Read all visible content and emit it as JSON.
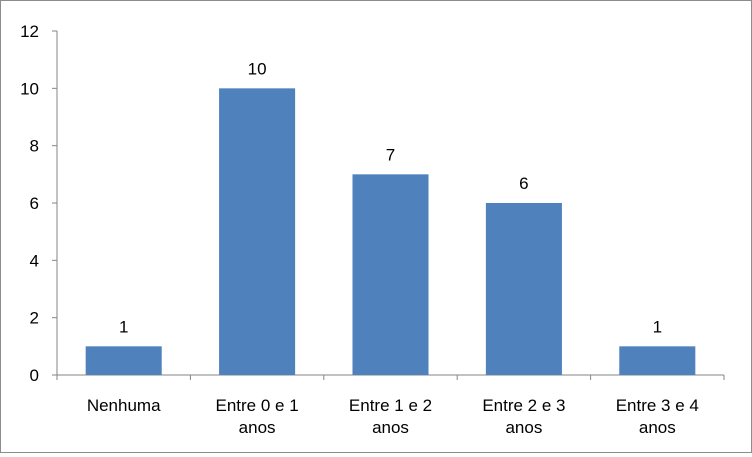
{
  "chart_data": {
    "type": "bar",
    "categories": [
      [
        "Nenhuma"
      ],
      [
        "Entre 0 e 1",
        "anos"
      ],
      [
        "Entre 1 e 2",
        "anos"
      ],
      [
        "Entre 2 e 3",
        "anos"
      ],
      [
        "Entre 3 e 4",
        "anos"
      ]
    ],
    "values": [
      1,
      10,
      7,
      6,
      1
    ],
    "data_labels": [
      "1",
      "10",
      "7",
      "6",
      "1"
    ],
    "y_ticks": [
      "0",
      "2",
      "4",
      "6",
      "8",
      "10",
      "12"
    ],
    "ylim": [
      0,
      12
    ],
    "grid": false,
    "legend": "none",
    "bar_color": "#4f81bd",
    "axis_color": "#868686"
  }
}
